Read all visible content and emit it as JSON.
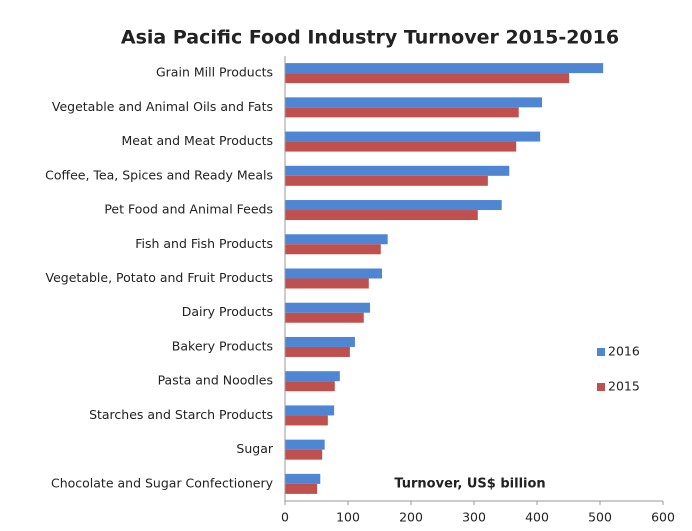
{
  "chart_data": {
    "type": "bar",
    "orientation": "horizontal",
    "title": "Asia Pacific Food Industry Turnover 2015-2016",
    "x_label": "Turnover, US$ billion",
    "categories": [
      "Grain Mill Products",
      "Vegetable and Animal Oils and Fats",
      "Meat and Meat Products",
      "Coffee, Tea, Spices and Ready Meals",
      "Pet Food and Animal Feeds",
      "Fish and Fish Products",
      "Vegetable, Potato and Fruit Products",
      "Dairy Products",
      "Bakery Products",
      "Pasta and Noodles",
      "Starches and Starch Products",
      "Sugar",
      "Chocolate and Sugar Confectionery"
    ],
    "series": [
      {
        "name": "2016",
        "color": "#4f86d4",
        "values": [
          505,
          408,
          405,
          356,
          344,
          163,
          154,
          135,
          111,
          87,
          78,
          63,
          56
        ]
      },
      {
        "name": "2015",
        "color": "#c0504d",
        "values": [
          451,
          371,
          367,
          322,
          306,
          152,
          133,
          125,
          103,
          79,
          68,
          59,
          51
        ]
      }
    ],
    "xlim": [
      0,
      600
    ],
    "xticks": [
      0,
      100,
      200,
      300,
      400,
      500,
      600
    ],
    "grid": false,
    "legend": "right"
  }
}
